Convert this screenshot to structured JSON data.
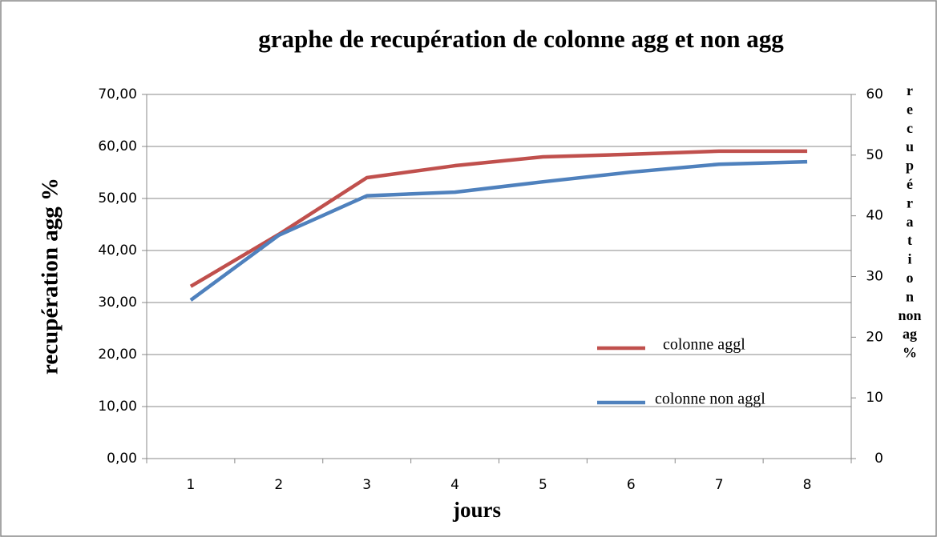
{
  "chart_data": {
    "type": "line",
    "title": "graphe de recupération de colonne agg et non agg",
    "xlabel": "jours",
    "ylabel": "recupération agg %",
    "y2label": "recupération non ag %",
    "categories": [
      "1",
      "2",
      "3",
      "4",
      "5",
      "6",
      "7",
      "8"
    ],
    "series": [
      {
        "name": "colonne aggl",
        "color": "#c0504d",
        "values": [
          33.1,
          43.1,
          54.0,
          56.3,
          58.0,
          58.5,
          59.1,
          59.1
        ]
      },
      {
        "name": "colonne non aggl",
        "color": "#4f81bd",
        "axis": "y2",
        "values": [
          26.1,
          36.8,
          43.3,
          43.9,
          45.6,
          47.2,
          48.5,
          48.9
        ]
      }
    ],
    "ylim": [
      0,
      70
    ],
    "yticks": [
      {
        "value": 0,
        "label": "0,00"
      },
      {
        "value": 10,
        "label": "10,00"
      },
      {
        "value": 20,
        "label": "20,00"
      },
      {
        "value": 30,
        "label": "30,00"
      },
      {
        "value": 40,
        "label": "40,00"
      },
      {
        "value": 50,
        "label": "50,00"
      },
      {
        "value": 60,
        "label": "60,00"
      },
      {
        "value": 70,
        "label": "70,00"
      }
    ],
    "y2lim": [
      0,
      60
    ],
    "y2ticks": [
      0,
      10,
      20,
      30,
      40,
      50,
      60
    ],
    "grid": true,
    "legend": "lower right"
  }
}
